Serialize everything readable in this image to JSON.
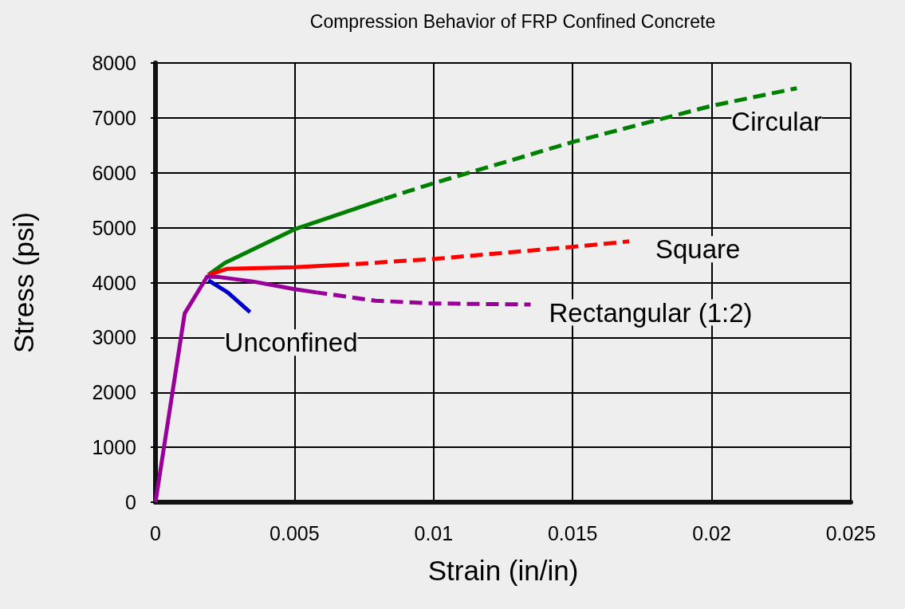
{
  "chart_data": {
    "type": "line",
    "title": "Compression Behavior of FRP Confined Concrete",
    "xlabel": "Strain (in/in)",
    "ylabel": "Stress (psi)",
    "xlim": [
      0,
      0.025
    ],
    "xticks": [
      0,
      0.005,
      0.01,
      0.015,
      0.02,
      0.025
    ],
    "ylim": [
      0,
      8000
    ],
    "yticks": [
      0,
      1000,
      2000,
      3000,
      4000,
      5000,
      6000,
      7000,
      8000
    ],
    "grid": true,
    "legend": false,
    "marker": "none",
    "series": [
      {
        "color": "#008000",
        "line_style": "solid",
        "x": [
          0.0019,
          0.0025,
          0.005,
          0.0082
        ],
        "values": [
          4140,
          4360,
          4970,
          5520
        ]
      },
      {
        "name": "Circular",
        "color": "#008000",
        "line_style": "dashed",
        "x": [
          0.0082,
          0.01,
          0.015,
          0.02,
          0.02306
        ],
        "values": [
          5520,
          5810,
          6560,
          7220,
          7540
        ]
      },
      {
        "color": "#ff0000",
        "line_style": "solid",
        "x": [
          0.0019,
          0.00257,
          0.005,
          0.00694
        ],
        "values": [
          4140,
          4250,
          4280,
          4330
        ]
      },
      {
        "name": "Square",
        "color": "#ff0000",
        "line_style": "dashed",
        "x": [
          0.00694,
          0.01,
          0.015,
          0.01703
        ],
        "values": [
          4330,
          4430,
          4650,
          4750
        ]
      },
      {
        "name": "Unconfined",
        "color": "#0000cc",
        "line_style": "solid",
        "x": [
          0.0019,
          0.0026,
          0.0034
        ],
        "values": [
          4040,
          3820,
          3460
        ]
      },
      {
        "color": "#990099",
        "line_style": "solid",
        "x": [
          0,
          0.00105,
          0.00186,
          0.0023,
          0.0035,
          0.005,
          0.0058
        ],
        "values": [
          0,
          3440,
          4110,
          4100,
          4020,
          3880,
          3820
        ]
      },
      {
        "name": "Rectangular (1:2)",
        "color": "#990099",
        "line_style": "dashed",
        "x": [
          0.0058,
          0.0079,
          0.01,
          0.01349
        ],
        "values": [
          3820,
          3670,
          3620,
          3600
        ]
      }
    ]
  }
}
